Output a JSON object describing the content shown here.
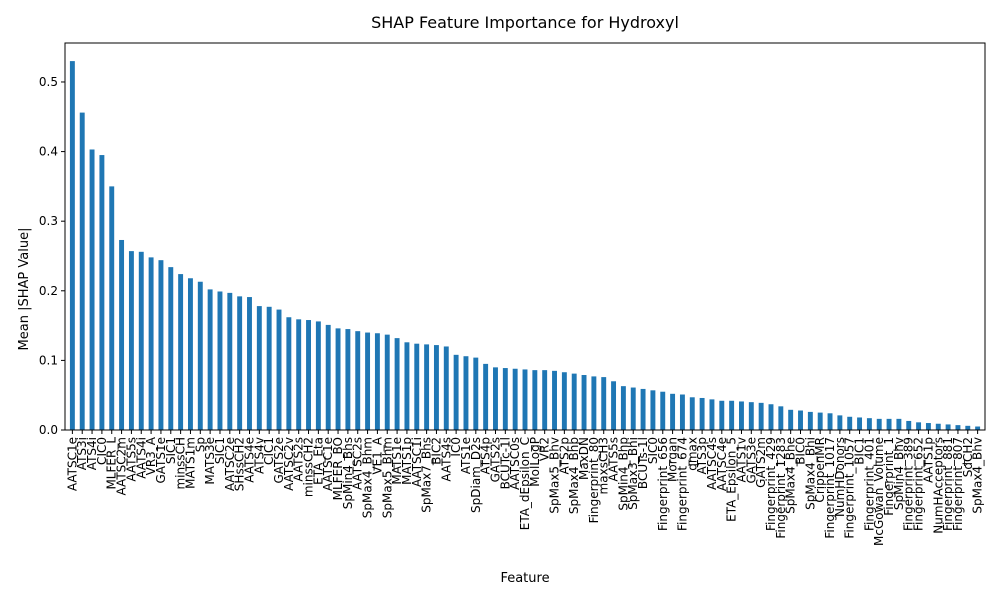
{
  "chart_data": {
    "type": "bar",
    "title": "SHAP Feature Importance for Hydroxyl",
    "xlabel": "Feature",
    "ylabel": "Mean |SHAP Value|",
    "ylim": [
      0,
      0.556
    ],
    "yticks": [
      0.0,
      0.1,
      0.2,
      0.3,
      0.4,
      0.5
    ],
    "ytick_labels": [
      "0.0",
      "0.1",
      "0.2",
      "0.3",
      "0.4",
      "0.5"
    ],
    "bar_color": "#1f77b4",
    "grid": false,
    "legend": "none",
    "categories": [
      "AATSC1e",
      "ATS3i",
      "ATS4i",
      "CIC0",
      "MLFER_L",
      "AATSC2m",
      "AATS5s",
      "AATS4i",
      "VR3_A",
      "GATS1e",
      "SIC1",
      "minssCH",
      "MATS1m",
      "Sp",
      "MATS3e",
      "SIC1",
      "AATSC2e",
      "SHssCH2",
      "AATS4e",
      "ATS4v",
      "CIC1",
      "GATS2e",
      "AATSC2v",
      "AATS2s",
      "minssCH2",
      "ETA_Eta",
      "AATSC1e",
      "MLFER_BO",
      "SpMin4_Bhs",
      "AATSC2s",
      "SpMax4_Bhm",
      "VE1_A",
      "SpMax5_Bhm",
      "MATS1e",
      "MATS1p",
      "AATSC1i",
      "SpMax7_Bhs",
      "BIC2",
      "AATS4s",
      "IC0",
      "ATS1e",
      "SpDiam_D2s",
      "ATS4p",
      "GATS2s",
      "BCUTc-1l",
      "AATSC0s",
      "ETA_dEpsilon_C",
      "MolLogP",
      "VR2",
      "SpMax5_Bhv",
      "ATS2p",
      "SpMax4_Bhp",
      "MaxDN",
      "Fingerprint_80",
      "maxsCH3",
      "AATS5s",
      "SpMin4_Bhp",
      "SpMax3_Bhi",
      "BCUTs-1l",
      "SIC0",
      "Fingerprint_656",
      "Morgan",
      "Fingerprint_674",
      "qmax",
      "ATS3p",
      "AATSC4s",
      "AATSC4e",
      "ETA_Epsilon_5",
      "AATS1v",
      "GATS3e",
      "GATS2m",
      "Fingerprint_429",
      "Fingerprint_1283",
      "SpMax4_Bhe",
      "BIC0",
      "SpMax4_Bhi",
      "CrippenMR",
      "Fingerprint_1017",
      "NumHDonors",
      "Fingerprint_1057",
      "BIC1",
      "Fingerprint_401",
      "McGowan_Volume",
      "Fingerprint_1",
      "SpMin4_Bhv",
      "Fingerprint_389",
      "Fingerprint_652",
      "AATS1p",
      "NumHAcceptors",
      "Fingerprint_881",
      "Fingerprint_807",
      "SdCH2",
      "SpMax4_Bhv"
    ],
    "values": [
      0.53,
      0.456,
      0.403,
      0.395,
      0.35,
      0.273,
      0.257,
      0.256,
      0.248,
      0.244,
      0.234,
      0.224,
      0.218,
      0.213,
      0.202,
      0.199,
      0.197,
      0.192,
      0.191,
      0.178,
      0.177,
      0.173,
      0.162,
      0.159,
      0.158,
      0.156,
      0.151,
      0.146,
      0.145,
      0.142,
      0.14,
      0.139,
      0.137,
      0.132,
      0.126,
      0.124,
      0.123,
      0.122,
      0.12,
      0.108,
      0.106,
      0.104,
      0.095,
      0.09,
      0.089,
      0.088,
      0.087,
      0.086,
      0.086,
      0.085,
      0.083,
      0.081,
      0.079,
      0.077,
      0.076,
      0.07,
      0.063,
      0.061,
      0.059,
      0.057,
      0.055,
      0.052,
      0.051,
      0.047,
      0.046,
      0.044,
      0.042,
      0.042,
      0.041,
      0.04,
      0.039,
      0.037,
      0.034,
      0.029,
      0.028,
      0.026,
      0.025,
      0.024,
      0.021,
      0.019,
      0.018,
      0.017,
      0.016,
      0.016,
      0.016,
      0.013,
      0.011,
      0.01,
      0.009,
      0.008,
      0.007,
      0.006,
      0.005
    ]
  }
}
